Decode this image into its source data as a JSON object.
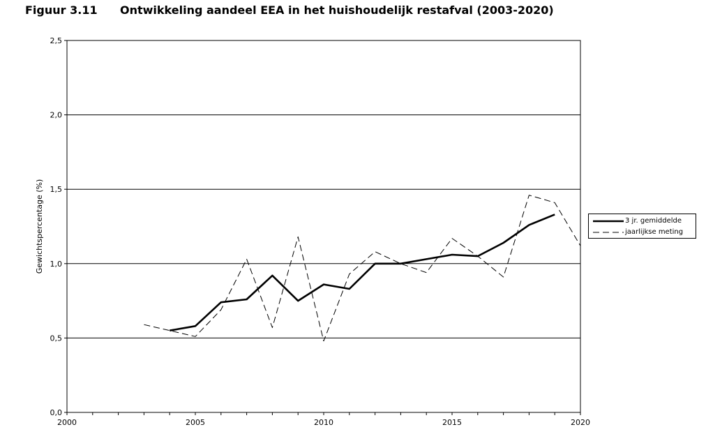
{
  "figure": {
    "number": "Figuur 3.11",
    "title": "Ontwikkeling aandeel EEA in het huishoudelijk restafval (2003-2020)"
  },
  "chart_data": {
    "type": "line",
    "title": "Ontwikkeling aandeel EEA in het huishoudelijk restafval (2003-2020)",
    "xlabel": "",
    "ylabel": "Gewichtspercentage (%)",
    "xlim": [
      2000,
      2020
    ],
    "ylim": [
      0,
      2.5
    ],
    "x_ticks": [
      2000,
      2005,
      2010,
      2015,
      2020
    ],
    "x_tick_labels": [
      "2000",
      "2005",
      "2010",
      "2015",
      "2020"
    ],
    "y_ticks": [
      0,
      0.5,
      1.0,
      1.5,
      2.0,
      2.5
    ],
    "y_tick_labels": [
      "0,0",
      "0,5",
      "1,0",
      "1,5",
      "2,0",
      "2,5"
    ],
    "grid": "horizontal",
    "legend_position": "right",
    "series": [
      {
        "name": "3 jr. gemiddelde",
        "style": "solid",
        "color": "#000000",
        "x": [
          2004,
          2005,
          2006,
          2007,
          2008,
          2009,
          2010,
          2011,
          2012,
          2013,
          2014,
          2015,
          2016,
          2017,
          2018,
          2019
        ],
        "y": [
          0.55,
          0.58,
          0.74,
          0.76,
          0.92,
          0.75,
          0.86,
          0.83,
          1.0,
          1.0,
          1.03,
          1.06,
          1.05,
          1.14,
          1.26,
          1.33
        ]
      },
      {
        "name": "jaarlijkse meting",
        "style": "dashed",
        "color": "#000000",
        "x": [
          2003,
          2004,
          2005,
          2006,
          2007,
          2008,
          2009,
          2010,
          2011,
          2012,
          2013,
          2014,
          2015,
          2016,
          2017,
          2018,
          2019,
          2020
        ],
        "y": [
          0.59,
          0.55,
          0.51,
          0.69,
          1.03,
          0.57,
          1.18,
          0.48,
          0.93,
          1.08,
          1.0,
          0.94,
          1.17,
          1.05,
          0.91,
          1.46,
          1.41,
          1.12
        ]
      }
    ]
  }
}
